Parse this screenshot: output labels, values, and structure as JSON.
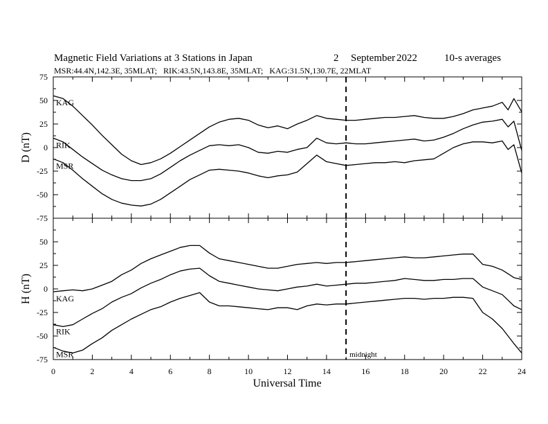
{
  "chart_data": {
    "type": "line",
    "title": "Magnetic Field Variations at 3 Stations in Japan",
    "date_day": "2",
    "date_month": "September",
    "date_year": "2022",
    "averaging": "10-s averages",
    "subtitle": "MSR:44.4N,142.3E, 35MLAT;   RIK:43.5N,143.8E, 35MLAT;   KAG:31.5N,130.7E, 22MLAT",
    "xlabel": "Universal Time",
    "xlim": [
      0,
      24
    ],
    "x_ticks": [
      "0",
      "2",
      "4",
      "6",
      "8",
      "10",
      "12",
      "14",
      "16",
      "18",
      "20",
      "22",
      "24"
    ],
    "marker": {
      "x": 15,
      "label": "midnight"
    },
    "panels": [
      {
        "ylabel": "D (nT)",
        "ylim": [
          -75,
          75
        ],
        "y_ticks": [
          "75",
          "50",
          "25",
          "0",
          "-25",
          "-50",
          "-75"
        ],
        "series": [
          {
            "name": "KAG",
            "x": [
              0,
              0.5,
              1,
              1.5,
              2,
              2.5,
              3,
              3.5,
              4,
              4.5,
              5,
              5.5,
              6,
              6.5,
              7,
              7.5,
              8,
              8.5,
              9,
              9.5,
              10,
              10.5,
              11,
              11.5,
              12,
              12.5,
              13,
              13.5,
              14,
              14.5,
              15,
              15.5,
              16,
              16.5,
              17,
              17.5,
              18,
              18.5,
              19,
              19.5,
              20,
              20.5,
              21,
              21.5,
              22,
              22.5,
              23,
              23.3,
              23.6,
              24
            ],
            "values": [
              55,
              52,
              44,
              34,
              24,
              13,
              3,
              -7,
              -14,
              -18,
              -16,
              -12,
              -6,
              1,
              8,
              15,
              22,
              27,
              30,
              31,
              29,
              24,
              21,
              23,
              20,
              25,
              29,
              34,
              31,
              30,
              29,
              29,
              30,
              31,
              32,
              32,
              33,
              34,
              32,
              31,
              31,
              33,
              36,
              40,
              42,
              44,
              48,
              40,
              52,
              38
            ]
          },
          {
            "name": "RIK",
            "x": [
              0,
              0.5,
              1,
              1.5,
              2,
              2.5,
              3,
              3.5,
              4,
              4.5,
              5,
              5.5,
              6,
              6.5,
              7,
              7.5,
              8,
              8.5,
              9,
              9.5,
              10,
              10.5,
              11,
              11.5,
              12,
              12.5,
              13,
              13.5,
              14,
              14.5,
              15,
              15.5,
              16,
              16.5,
              17,
              17.5,
              18,
              18.5,
              19,
              19.5,
              20,
              20.5,
              21,
              21.5,
              22,
              22.5,
              23,
              23.3,
              23.6,
              24
            ],
            "values": [
              10,
              6,
              -2,
              -10,
              -17,
              -24,
              -29,
              -33,
              -35,
              -35,
              -33,
              -28,
              -21,
              -14,
              -8,
              -3,
              2,
              3,
              2,
              3,
              0,
              -5,
              -6,
              -4,
              -5,
              -2,
              0,
              10,
              5,
              4,
              5,
              4,
              4,
              5,
              6,
              7,
              8,
              9,
              7,
              8,
              11,
              15,
              20,
              24,
              27,
              28,
              30,
              22,
              28,
              -3
            ]
          },
          {
            "name": "MSR",
            "x": [
              0,
              0.5,
              1,
              1.5,
              2,
              2.5,
              3,
              3.5,
              4,
              4.5,
              5,
              5.5,
              6,
              6.5,
              7,
              7.5,
              8,
              8.5,
              9,
              9.5,
              10,
              10.5,
              11,
              11.5,
              12,
              12.5,
              13,
              13.5,
              14,
              14.5,
              15,
              15.5,
              16,
              16.5,
              17,
              17.5,
              18,
              18.5,
              19,
              19.5,
              20,
              20.5,
              21,
              21.5,
              22,
              22.5,
              23,
              23.3,
              23.6,
              24
            ],
            "values": [
              -12,
              -16,
              -24,
              -33,
              -41,
              -49,
              -55,
              -59,
              -61,
              -62,
              -60,
              -55,
              -48,
              -41,
              -34,
              -29,
              -24,
              -23,
              -24,
              -25,
              -27,
              -30,
              -32,
              -30,
              -29,
              -26,
              -17,
              -8,
              -15,
              -17,
              -19,
              -18,
              -17,
              -16,
              -16,
              -15,
              -16,
              -14,
              -13,
              -12,
              -6,
              0,
              4,
              6,
              6,
              5,
              7,
              -2,
              3,
              -27
            ]
          }
        ]
      },
      {
        "ylabel": "H (nT)",
        "ylim": [
          -75,
          75
        ],
        "y_ticks": [
          "50",
          "25",
          "0",
          "-25",
          "-50",
          "-75"
        ],
        "series": [
          {
            "name": "KAG",
            "x": [
              0,
              0.5,
              1,
              1.5,
              2,
              2.5,
              3,
              3.5,
              4,
              4.5,
              5,
              5.5,
              6,
              6.5,
              7,
              7.5,
              8,
              8.5,
              9,
              9.5,
              10,
              10.5,
              11,
              11.5,
              12,
              12.5,
              13,
              13.5,
              14,
              14.5,
              15,
              15.5,
              16,
              16.5,
              17,
              17.5,
              18,
              18.5,
              19,
              19.5,
              20,
              20.5,
              21,
              21.5,
              22,
              22.5,
              23,
              23.3,
              23.6,
              24
            ],
            "values": [
              -3,
              -2,
              -1,
              -2,
              0,
              4,
              8,
              15,
              20,
              27,
              32,
              36,
              40,
              44,
              46,
              46,
              38,
              32,
              30,
              28,
              26,
              24,
              22,
              22,
              24,
              26,
              27,
              28,
              27,
              28,
              28,
              29,
              30,
              31,
              32,
              33,
              34,
              33,
              33,
              34,
              35,
              36,
              37,
              37,
              26,
              24,
              20,
              16,
              12,
              10
            ]
          },
          {
            "name": "RIK",
            "x": [
              0,
              0.5,
              1,
              1.5,
              2,
              2.5,
              3,
              3.5,
              4,
              4.5,
              5,
              5.5,
              6,
              6.5,
              7,
              7.5,
              8,
              8.5,
              9,
              9.5,
              10,
              10.5,
              11,
              11.5,
              12,
              12.5,
              13,
              13.5,
              14,
              14.5,
              15,
              15.5,
              16,
              16.5,
              17,
              17.5,
              18,
              18.5,
              19,
              19.5,
              20,
              20.5,
              21,
              21.5,
              22,
              22.5,
              23,
              23.3,
              23.6,
              24
            ],
            "values": [
              -38,
              -40,
              -38,
              -32,
              -26,
              -21,
              -14,
              -9,
              -5,
              1,
              6,
              10,
              15,
              19,
              21,
              22,
              14,
              8,
              6,
              4,
              2,
              0,
              -1,
              -2,
              0,
              2,
              3,
              5,
              3,
              4,
              5,
              6,
              6,
              7,
              8,
              9,
              11,
              10,
              9,
              9,
              10,
              10,
              11,
              11,
              2,
              -2,
              -6,
              -12,
              -18,
              -22
            ]
          },
          {
            "name": "MSR",
            "x": [
              0,
              0.5,
              1,
              1.5,
              2,
              2.5,
              3,
              3.5,
              4,
              4.5,
              5,
              5.5,
              6,
              6.5,
              7,
              7.5,
              8,
              8.5,
              9,
              9.5,
              10,
              10.5,
              11,
              11.5,
              12,
              12.5,
              13,
              13.5,
              14,
              14.5,
              15,
              15.5,
              16,
              16.5,
              17,
              17.5,
              18,
              18.5,
              19,
              19.5,
              20,
              20.5,
              21,
              21.5,
              22,
              22.5,
              23,
              23.3,
              23.6,
              24
            ],
            "values": [
              -62,
              -66,
              -68,
              -65,
              -58,
              -52,
              -44,
              -38,
              -32,
              -27,
              -22,
              -19,
              -14,
              -10,
              -7,
              -4,
              -14,
              -18,
              -18,
              -19,
              -20,
              -21,
              -22,
              -20,
              -20,
              -22,
              -18,
              -16,
              -17,
              -16,
              -16,
              -15,
              -14,
              -13,
              -12,
              -11,
              -10,
              -10,
              -11,
              -10,
              -10,
              -9,
              -9,
              -10,
              -25,
              -32,
              -42,
              -50,
              -58,
              -68
            ]
          }
        ]
      }
    ]
  }
}
